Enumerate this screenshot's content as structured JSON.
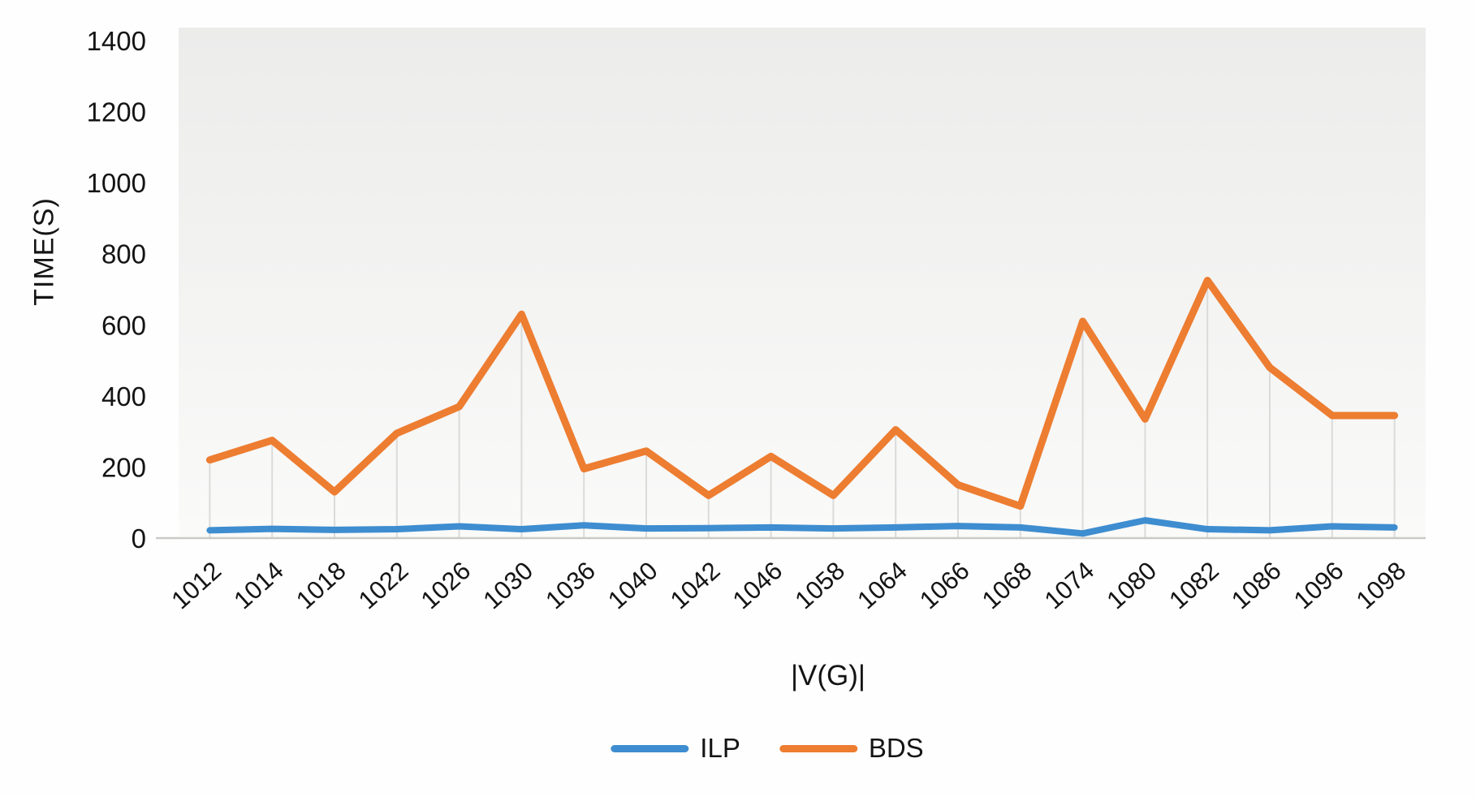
{
  "chart_data": {
    "type": "line",
    "title": "",
    "xlabel": "|V(G)|",
    "ylabel": "TIME(S)",
    "ylim": [
      0,
      1400
    ],
    "ytick_interval": 200,
    "yticks": [
      "0",
      "200",
      "400",
      "600",
      "800",
      "1000",
      "1200",
      "1400"
    ],
    "categories": [
      "1012",
      "1014",
      "1018",
      "1022",
      "1026",
      "1030",
      "1036",
      "1040",
      "1042",
      "1046",
      "1058",
      "1064",
      "1066",
      "1068",
      "1074",
      "1080",
      "1082",
      "1086",
      "1096",
      "1098"
    ],
    "series": [
      {
        "name": "ILP",
        "color": "#3E8DD0",
        "values": [
          22,
          26,
          23,
          25,
          33,
          25,
          36,
          27,
          28,
          30,
          27,
          30,
          34,
          30,
          13,
          50,
          25,
          22,
          33,
          30
        ]
      },
      {
        "name": "BDS",
        "color": "#ED7D31",
        "values": [
          220,
          275,
          130,
          295,
          370,
          630,
          195,
          245,
          120,
          230,
          120,
          305,
          150,
          90,
          610,
          335,
          725,
          480,
          345,
          345
        ]
      }
    ],
    "legend_position": "bottom",
    "grid": "vertical-drop-lines",
    "plot_background": "#EFEFEE",
    "axis_line_color": "#C9C9C8",
    "drop_line_color": "#DBDBDA"
  }
}
